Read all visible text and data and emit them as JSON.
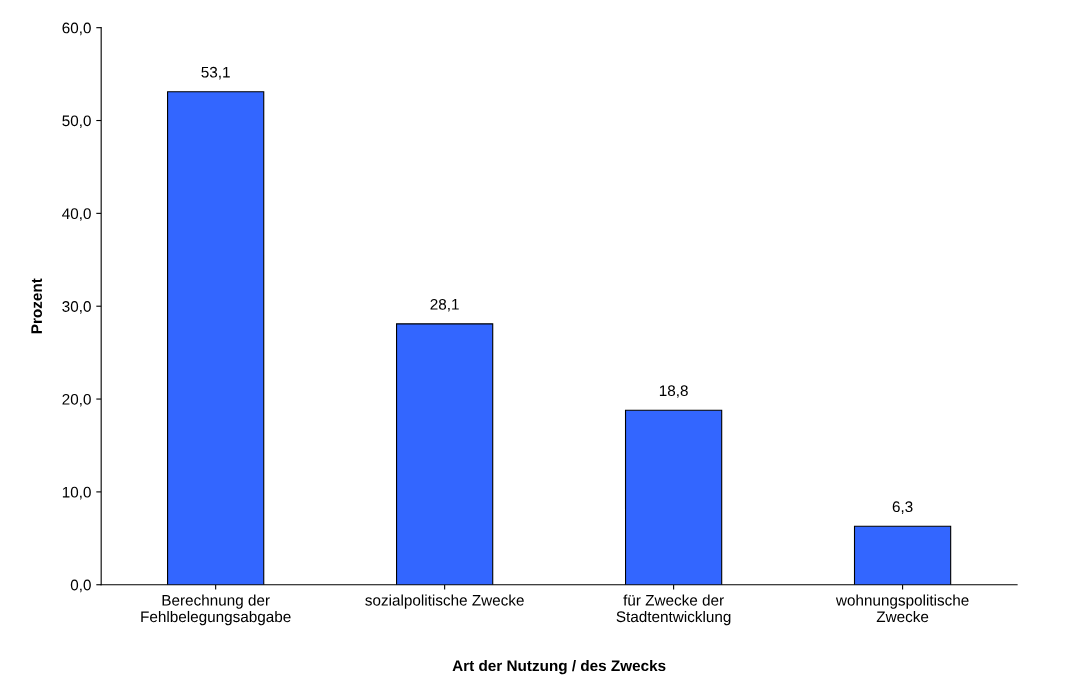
{
  "chart_data": {
    "type": "bar",
    "xlabel": "Art der Nutzung / des Zwecks",
    "ylabel": "Prozent",
    "categories": [
      "Berechnung der\nFehlbelegungsabgabe",
      "sozialpolitische Zwecke",
      "für Zwecke der\nStadtentwicklung",
      "wohnungspolitische\nZwecke"
    ],
    "values": [
      53.1,
      28.1,
      18.8,
      6.3
    ],
    "value_labels": [
      "53,1",
      "28,1",
      "18,8",
      "6,3"
    ],
    "color": "#3366ff",
    "ylim": [
      0,
      60
    ],
    "yticks": [
      {
        "value": 0,
        "label": "0,0"
      },
      {
        "value": 10,
        "label": "10,0"
      },
      {
        "value": 20,
        "label": "20,0"
      },
      {
        "value": 30,
        "label": "30,0"
      },
      {
        "value": 40,
        "label": "40,0"
      },
      {
        "value": 50,
        "label": "50,0"
      },
      {
        "value": 60,
        "label": "60,0"
      }
    ],
    "grid": false,
    "legend": false
  }
}
